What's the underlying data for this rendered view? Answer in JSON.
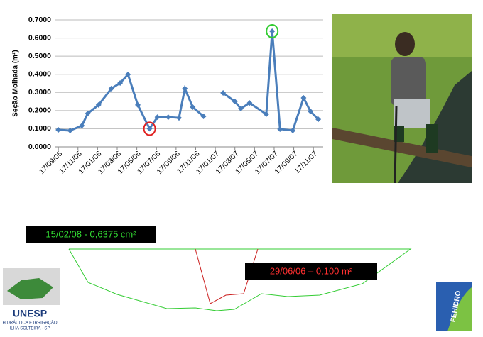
{
  "chart_data": {
    "type": "line",
    "y_label": "Seção Molhada (m²)",
    "xlim": [
      -0.3,
      27.0
    ],
    "xticks": [
      {
        "value": 0,
        "label": "17/09/05"
      },
      {
        "value": 2,
        "label": "17/11/05"
      },
      {
        "value": 4,
        "label": "17/01/06"
      },
      {
        "value": 6,
        "label": "17/03/06"
      },
      {
        "value": 8,
        "label": "17/05/06"
      },
      {
        "value": 10,
        "label": "17/07/06"
      },
      {
        "value": 12,
        "label": "17/09/06"
      },
      {
        "value": 14,
        "label": "17/11/06"
      },
      {
        "value": 16,
        "label": "17/01/07"
      },
      {
        "value": 18,
        "label": "17/03/07"
      },
      {
        "value": 20,
        "label": "17/05/07"
      },
      {
        "value": 22,
        "label": "17/07/07"
      },
      {
        "value": 24,
        "label": "17/09/07"
      },
      {
        "value": 26,
        "label": "17/11/07"
      }
    ],
    "ylim": [
      0,
      0.7
    ],
    "yticks": [
      {
        "value": 0,
        "label": "0.0000"
      },
      {
        "value": 0.1,
        "label": "0.1000"
      },
      {
        "value": 0.2,
        "label": "0.2000"
      },
      {
        "value": 0.3,
        "label": "0.3000"
      },
      {
        "value": 0.4,
        "label": "0.4000"
      },
      {
        "value": 0.5,
        "label": "0.5000"
      },
      {
        "value": 0.6,
        "label": "0.6000"
      },
      {
        "value": 0.7,
        "label": "0.7000"
      }
    ],
    "grid": true,
    "x": [
      0,
      1.2,
      2.4,
      3.0,
      4.1,
      5.4,
      6.3,
      7.1,
      8.1,
      9.3,
      10.1,
      11.2,
      12.3,
      12.9,
      13.7,
      14.8,
      15.8,
      16.8,
      18.0,
      18.6,
      19.5,
      21.2,
      21.8,
      22.6,
      23.9,
      25.0,
      25.7,
      26.5
    ],
    "series": [
      {
        "name": "Seção Molhada",
        "color": "#4a7ebb",
        "values": [
          0.094,
          0.09,
          0.117,
          0.184,
          0.231,
          0.321,
          0.352,
          0.399,
          0.231,
          0.1,
          0.164,
          0.164,
          0.16,
          0.321,
          0.219,
          0.168,
          null,
          0.297,
          0.25,
          0.211,
          0.242,
          0.18,
          0.6375,
          0.098,
          0.09,
          0.27,
          0.196,
          0.152
        ]
      }
    ],
    "highlights": [
      {
        "index": 9,
        "color": "#e02020"
      },
      {
        "index": 22,
        "color": "#33cc33"
      }
    ]
  },
  "section": {
    "labels": [
      {
        "text": "15/02/08 - 0,6375 cm²",
        "color": "#33dd33"
      },
      {
        "text": "29/06/06 – 0,100 m²",
        "color": "#ff3030"
      }
    ]
  },
  "logos": {
    "unesp": "UNESP",
    "unesp_sub1": "HIDRÁULICA E IRRIGAÇÃO",
    "unesp_sub2": "ILHA SOLTEIRA - SP",
    "fehidro": "FEHIDRO"
  }
}
